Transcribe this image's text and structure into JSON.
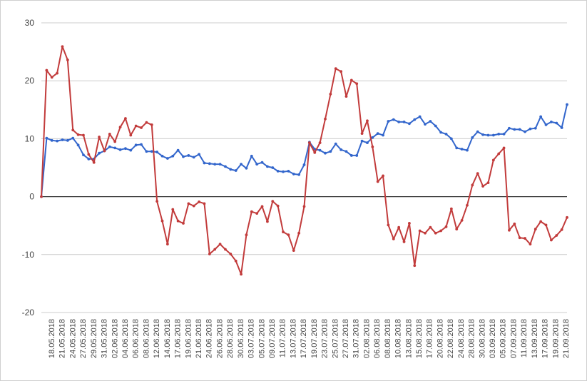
{
  "chart_data": {
    "type": "line",
    "title": "",
    "xlabel": "",
    "ylabel": "",
    "ylim": [
      -20,
      30
    ],
    "y_ticks": [
      "30",
      "20",
      "10",
      "0",
      "-10",
      "-20"
    ],
    "y_tick_values": [
      30,
      20,
      10,
      0,
      -10,
      -20
    ],
    "grid": true,
    "legend": "none",
    "x_tick_labels": [
      "18.05.2018",
      "21.05.2018",
      "24.05.2018",
      "27.05.2018",
      "29.05.2018",
      "31.05.2018",
      "02.06.2018",
      "04.06.2018",
      "06.06.2018",
      "08.06.2018",
      "12.06.2018",
      "14.06.2018",
      "17.06.2018",
      "19.06.2018",
      "21.06.2018",
      "24.06.2018",
      "26.06.2018",
      "28.06.2018",
      "30.06.2018",
      "03.07.2018",
      "05.07.2018",
      "09.07.2018",
      "11.07.2018",
      "13.07.2018",
      "17.07.2018",
      "19.07.2018",
      "23.07.2018",
      "25.07.2018",
      "27.07.2018",
      "31.07.2018",
      "02.08.2018",
      "06.08.2018",
      "08.08.2018",
      "10.08.2018",
      "13.08.2018",
      "15.08.2018",
      "17.08.2018",
      "20.08.2018",
      "22.08.2018",
      "24.08.2018",
      "28.08.2018",
      "30.08.2018",
      "03.09.2018",
      "05.09.2018",
      "07.09.2018",
      "11.09.2018",
      "13.09.2018",
      "17.09.2018",
      "19.09.2018",
      "21.09.2018"
    ],
    "series": [
      {
        "color": "#3366cc",
        "values": [
          0,
          10.1,
          9.7,
          9.6,
          9.8,
          9.7,
          10.1,
          8.9,
          7.2,
          6.5,
          6.5,
          7.5,
          7.9,
          8.6,
          8.4,
          8.1,
          8.3,
          8.0,
          8.9,
          9.0,
          7.8,
          7.8,
          7.7,
          7.0,
          6.6,
          7.0,
          8.0,
          6.9,
          7.1,
          6.8,
          7.3,
          5.8,
          5.7,
          5.6,
          5.6,
          5.2,
          4.7,
          4.5,
          5.6,
          4.9,
          7.0,
          5.6,
          5.9,
          5.2,
          5.0,
          4.4,
          4.3,
          4.4,
          3.9,
          3.8,
          5.5,
          9.4,
          8.2,
          8.0,
          7.5,
          7.8,
          9.1,
          8.1,
          7.8,
          7.1,
          7.1,
          9.6,
          9.3,
          10.2,
          10.9,
          10.6,
          13.0,
          13.3,
          12.9,
          12.9,
          12.6,
          13.3,
          13.8,
          12.5,
          13.0,
          12.2,
          11.1,
          10.8,
          10.0,
          8.4,
          8.2,
          8.0,
          10.2,
          11.2,
          10.7,
          10.6,
          10.6,
          10.8,
          10.8,
          11.8,
          11.6,
          11.6,
          11.2,
          11.7,
          11.8,
          13.8,
          12.4,
          12.9,
          12.7,
          11.9,
          15.9
        ]
      },
      {
        "color": "#c23b3b",
        "values": [
          0,
          21.8,
          20.6,
          21.3,
          25.9,
          23.6,
          11.5,
          10.7,
          10.6,
          7.3,
          5.9,
          10.3,
          7.9,
          10.8,
          9.5,
          12.0,
          13.5,
          10.6,
          12.2,
          11.9,
          12.8,
          12.4,
          -0.8,
          -4.2,
          -8.2,
          -2.2,
          -4.2,
          -4.6,
          -1.2,
          -1.6,
          -0.9,
          -1.2,
          -9.9,
          -9.1,
          -8.2,
          -9.1,
          -9.9,
          -11.1,
          -13.4,
          -6.6,
          -2.6,
          -2.9,
          -1.7,
          -4.3,
          -0.8,
          -1.6,
          -6.1,
          -6.6,
          -9.3,
          -6.3,
          -1.7,
          9.3,
          7.6,
          9.3,
          13.4,
          17.7,
          22.1,
          21.6,
          17.3,
          20.1,
          19.5,
          10.9,
          13.1,
          8.6,
          2.6,
          3.6,
          -4.9,
          -7.3,
          -5.3,
          -7.8,
          -4.6,
          -11.9,
          -5.9,
          -6.3,
          -5.3,
          -6.3,
          -5.9,
          -5.2,
          -2.1,
          -5.6,
          -4.1,
          -1.5,
          2.0,
          4.0,
          1.8,
          2.4,
          6.3,
          7.4,
          8.4,
          -5.8,
          -4.7,
          -7.1,
          -7.2,
          -8.2,
          -5.6,
          -4.3,
          -4.9,
          -7.5,
          -6.7,
          -5.7,
          -3.6
        ]
      }
    ]
  }
}
